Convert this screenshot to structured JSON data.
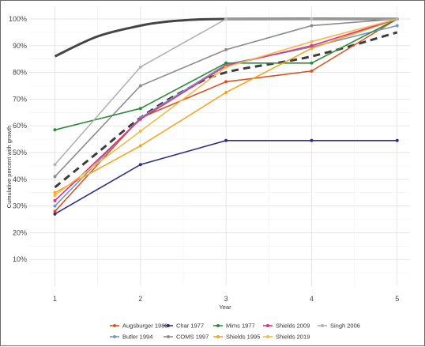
{
  "chart_data": {
    "type": "line",
    "xlabel": "Year",
    "ylabel": "Cumulative percent with growth",
    "x": [
      1,
      2,
      3,
      4,
      5
    ],
    "xlim": [
      0.7,
      5.15
    ],
    "ylim": [
      0,
      100
    ],
    "x_ticks": [
      "1",
      "2",
      "3",
      "4",
      "5"
    ],
    "y_ticks": [
      "10%",
      "20%",
      "30%",
      "40%",
      "50%",
      "60%",
      "70%",
      "80%",
      "90%",
      "100%"
    ],
    "grid": true,
    "legend_position": "bottom",
    "series": [
      {
        "name": "Augsburger 1989",
        "color": "#d9541e",
        "values": [
          28,
          63,
          76.5,
          80.5,
          100
        ],
        "markers": true
      },
      {
        "name": "Butler 1994",
        "color": "#6f98c9",
        "values": [
          30,
          63,
          83,
          89.5,
          97.5
        ],
        "markers": true
      },
      {
        "name": "Char 1977",
        "color": "#2f2f86",
        "values": [
          27,
          45.5,
          54.5,
          54.5,
          54.5
        ],
        "markers": true
      },
      {
        "name": "COMS 1997",
        "color": "#8c8c8c",
        "values": [
          41,
          75,
          88.5,
          97.5,
          100
        ],
        "markers": true
      },
      {
        "name": "Mims 1977",
        "color": "#2e8b3e",
        "values": [
          58.5,
          66.5,
          83.5,
          83.5,
          100
        ],
        "markers": true
      },
      {
        "name": "Shields 1995",
        "color": "#f5a623",
        "values": [
          35,
          52.5,
          72.5,
          89,
          100
        ],
        "markers": true
      },
      {
        "name": "Shields 2009",
        "color": "#e0317d",
        "values": [
          32,
          62.5,
          82.5,
          90,
          100
        ],
        "markers": true
      },
      {
        "name": "Shields 2019",
        "color": "#f7b84a",
        "values": [
          34,
          58,
          82,
          91.5,
          100
        ],
        "markers": true
      },
      {
        "name": "Singh 2006",
        "color": "#b3b3b3",
        "values": [
          45.5,
          82,
          100,
          100,
          100
        ],
        "markers": true
      }
    ],
    "overlays": [
      {
        "style": "solid",
        "color": "#444444",
        "x": [
          1,
          1.5,
          2,
          2.25,
          2.5,
          3,
          5
        ],
        "values": [
          86,
          93.5,
          97.5,
          98.8,
          99.5,
          100,
          100
        ]
      },
      {
        "style": "dashed",
        "color": "#3d3d3d",
        "x": [
          1,
          1.5,
          2,
          2.5,
          3,
          4,
          5
        ],
        "values": [
          37,
          50,
          63,
          73,
          80,
          86,
          95
        ]
      }
    ]
  }
}
